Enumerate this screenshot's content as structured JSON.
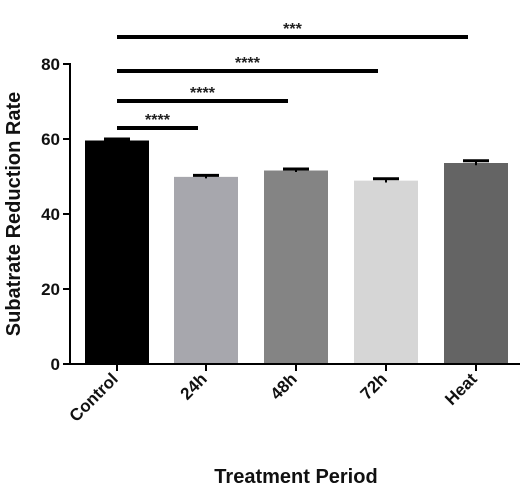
{
  "chart_data": {
    "type": "bar",
    "title": "",
    "xlabel": "Treatment Period",
    "ylabel": "Subatrate Reduction Rate",
    "ylim": [
      0,
      80
    ],
    "yticks": [
      0,
      20,
      40,
      60,
      80
    ],
    "yticks_text": [
      "0",
      "20",
      "40",
      "60",
      "80"
    ],
    "grid": false,
    "legend": "none",
    "categories": [
      "Control",
      "24h",
      "48h",
      "72h",
      "Heat"
    ],
    "values": [
      59.6,
      49.9,
      51.6,
      48.9,
      53.6
    ],
    "errors": [
      0.4,
      0.4,
      0.4,
      0.5,
      0.6
    ],
    "colors": [
      "#000000",
      "#a7a7ad",
      "#848484",
      "#d6d6d6",
      "#646464"
    ],
    "comparisons": [
      {
        "from": "Control",
        "to": "24h",
        "label": "****"
      },
      {
        "from": "Control",
        "to": "48h",
        "label": "****"
      },
      {
        "from": "Control",
        "to": "72h",
        "label": "****"
      },
      {
        "from": "Control",
        "to": "Heat",
        "label": "***"
      }
    ]
  }
}
